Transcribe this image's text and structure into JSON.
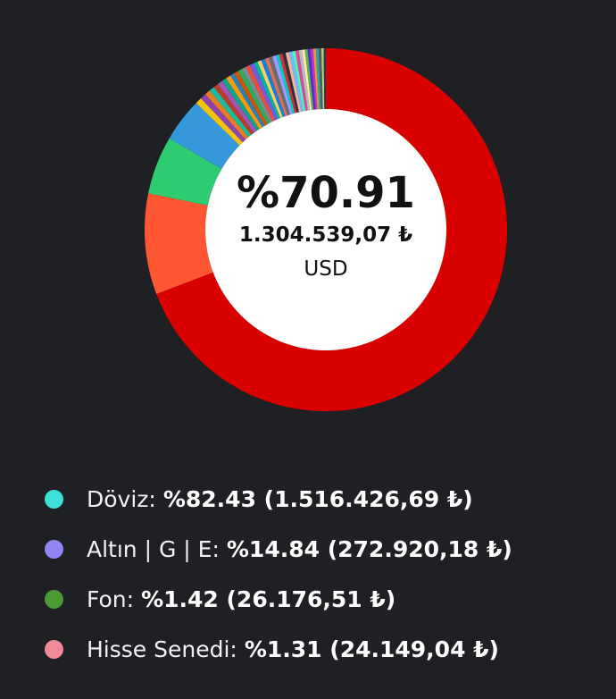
{
  "chart_data": {
    "type": "pie",
    "center": {
      "percent": "%70.91",
      "amount": "1.304.539,07 ₺",
      "name": "USD"
    },
    "slices": [
      {
        "value": 70.91,
        "color": "#d90000"
      },
      {
        "value": 9.2,
        "color": "#ff5733"
      },
      {
        "value": 5.3,
        "color": "#2ecc71"
      },
      {
        "value": 4.0,
        "color": "#3498db"
      },
      {
        "value": 0.6,
        "color": "#f1c40f"
      },
      {
        "value": 0.55,
        "color": "#8e44ad"
      },
      {
        "value": 0.5,
        "color": "#e67e22"
      },
      {
        "value": 0.5,
        "color": "#1abc9c"
      },
      {
        "value": 0.45,
        "color": "#c0392b"
      },
      {
        "value": 0.45,
        "color": "#9b59b6"
      },
      {
        "value": 0.45,
        "color": "#16a085"
      },
      {
        "value": 0.45,
        "color": "#f39c12"
      },
      {
        "value": 0.4,
        "color": "#2980b9"
      },
      {
        "value": 0.4,
        "color": "#d35400"
      },
      {
        "value": 0.4,
        "color": "#27ae60"
      },
      {
        "value": 0.4,
        "color": "#7f8c8d"
      },
      {
        "value": 0.4,
        "color": "#e74c3c"
      },
      {
        "value": 0.4,
        "color": "#6c5ce7"
      },
      {
        "value": 0.35,
        "color": "#00b894"
      },
      {
        "value": 0.35,
        "color": "#fdcb6e"
      },
      {
        "value": 0.35,
        "color": "#0984e3"
      },
      {
        "value": 0.35,
        "color": "#e17055"
      },
      {
        "value": 0.35,
        "color": "#636e72"
      },
      {
        "value": 0.35,
        "color": "#a29bfe"
      },
      {
        "value": 0.3,
        "color": "#00cec9"
      },
      {
        "value": 0.3,
        "color": "#d63031"
      },
      {
        "value": 0.3,
        "color": "#2d3436"
      },
      {
        "value": 0.3,
        "color": "#fab1a0"
      },
      {
        "value": 0.3,
        "color": "#74b9ff"
      },
      {
        "value": 0.3,
        "color": "#55efc4"
      },
      {
        "value": 0.3,
        "color": "#e84393"
      },
      {
        "value": 0.3,
        "color": "#b2bec3"
      },
      {
        "value": 0.25,
        "color": "#ffeaa7"
      },
      {
        "value": 0.25,
        "color": "#6ab04c"
      },
      {
        "value": 0.25,
        "color": "#4834d4"
      },
      {
        "value": 0.25,
        "color": "#be2edd"
      },
      {
        "value": 0.25,
        "color": "#f0932b"
      },
      {
        "value": 0.25,
        "color": "#22a6b3"
      },
      {
        "value": 0.25,
        "color": "#535c68"
      },
      {
        "value": 0.2,
        "color": "#badc58"
      },
      {
        "value": 0.2,
        "color": "#30336b"
      }
    ],
    "legend": [
      {
        "name": "Döviz:",
        "value": "%82.43 (1.516.426,69 ₺)",
        "color": "#3de0d6"
      },
      {
        "name": "Altın | G | E:",
        "value": "%14.84 (272.920,18 ₺)",
        "color": "#9184f5"
      },
      {
        "name": "Fon:",
        "value": "%1.42 (26.176,51 ₺)",
        "color": "#4c9a36"
      },
      {
        "name": "Hisse Senedi:",
        "value": "%1.31 (24.149,04 ₺)",
        "color": "#f08a99"
      }
    ]
  }
}
